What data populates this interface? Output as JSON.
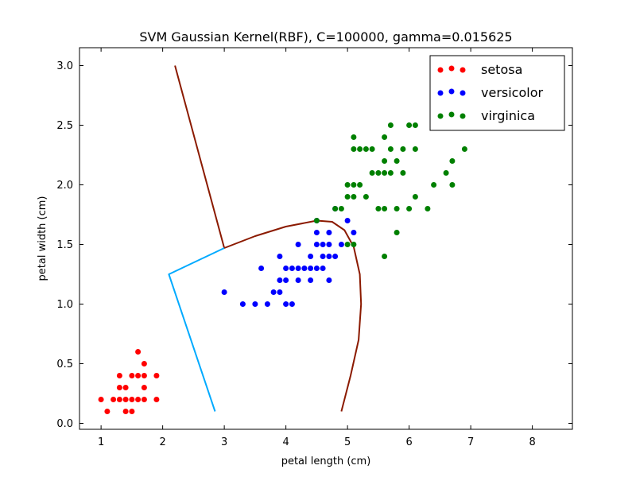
{
  "chart_data": {
    "type": "scatter",
    "title": "SVM Gaussian Kernel(RBF), C=100000, gamma=0.015625",
    "xlabel": "petal length (cm)",
    "ylabel": "petal width (cm)",
    "xlim": [
      0.65,
      8.65
    ],
    "ylim": [
      -0.05,
      3.15
    ],
    "xticks": [
      "1",
      "2",
      "3",
      "4",
      "5",
      "6",
      "7",
      "8"
    ],
    "yticks": [
      "0.0",
      "0.5",
      "1.0",
      "1.5",
      "2.0",
      "2.5",
      "3.0"
    ],
    "grid": false,
    "legend_position": "top-right",
    "series": [
      {
        "name": "setosa",
        "color": "#ff0000",
        "points": [
          [
            1.0,
            0.2
          ],
          [
            1.1,
            0.1
          ],
          [
            1.2,
            0.2
          ],
          [
            1.3,
            0.2
          ],
          [
            1.3,
            0.3
          ],
          [
            1.3,
            0.4
          ],
          [
            1.4,
            0.1
          ],
          [
            1.4,
            0.2
          ],
          [
            1.4,
            0.3
          ],
          [
            1.5,
            0.1
          ],
          [
            1.5,
            0.2
          ],
          [
            1.5,
            0.4
          ],
          [
            1.6,
            0.2
          ],
          [
            1.6,
            0.4
          ],
          [
            1.6,
            0.6
          ],
          [
            1.7,
            0.2
          ],
          [
            1.7,
            0.3
          ],
          [
            1.7,
            0.4
          ],
          [
            1.7,
            0.5
          ],
          [
            1.9,
            0.2
          ],
          [
            1.9,
            0.4
          ]
        ]
      },
      {
        "name": "versicolor",
        "color": "#0000ff",
        "points": [
          [
            3.0,
            1.1
          ],
          [
            3.3,
            1.0
          ],
          [
            3.5,
            1.0
          ],
          [
            3.6,
            1.3
          ],
          [
            3.7,
            1.0
          ],
          [
            3.8,
            1.1
          ],
          [
            3.9,
            1.1
          ],
          [
            3.9,
            1.2
          ],
          [
            3.9,
            1.4
          ],
          [
            4.0,
            1.0
          ],
          [
            4.0,
            1.2
          ],
          [
            4.0,
            1.3
          ],
          [
            4.1,
            1.0
          ],
          [
            4.1,
            1.3
          ],
          [
            4.2,
            1.2
          ],
          [
            4.2,
            1.3
          ],
          [
            4.2,
            1.5
          ],
          [
            4.3,
            1.3
          ],
          [
            4.4,
            1.2
          ],
          [
            4.4,
            1.3
          ],
          [
            4.4,
            1.4
          ],
          [
            4.5,
            1.3
          ],
          [
            4.5,
            1.5
          ],
          [
            4.5,
            1.6
          ],
          [
            4.5,
            1.7
          ],
          [
            4.6,
            1.3
          ],
          [
            4.6,
            1.4
          ],
          [
            4.6,
            1.5
          ],
          [
            4.7,
            1.2
          ],
          [
            4.7,
            1.4
          ],
          [
            4.7,
            1.5
          ],
          [
            4.7,
            1.6
          ],
          [
            4.8,
            1.4
          ],
          [
            4.8,
            1.8
          ],
          [
            4.9,
            1.5
          ],
          [
            5.0,
            1.7
          ],
          [
            5.1,
            1.6
          ]
        ]
      },
      {
        "name": "virginica",
        "color": "#008000",
        "points": [
          [
            4.5,
            1.7
          ],
          [
            4.8,
            1.8
          ],
          [
            4.9,
            1.8
          ],
          [
            5.0,
            1.5
          ],
          [
            5.0,
            1.9
          ],
          [
            5.0,
            2.0
          ],
          [
            5.1,
            1.5
          ],
          [
            5.1,
            1.9
          ],
          [
            5.1,
            2.0
          ],
          [
            5.1,
            2.3
          ],
          [
            5.1,
            2.4
          ],
          [
            5.2,
            2.0
          ],
          [
            5.2,
            2.3
          ],
          [
            5.3,
            1.9
          ],
          [
            5.3,
            2.3
          ],
          [
            5.4,
            2.1
          ],
          [
            5.4,
            2.3
          ],
          [
            5.5,
            1.8
          ],
          [
            5.5,
            2.1
          ],
          [
            5.6,
            1.4
          ],
          [
            5.6,
            1.8
          ],
          [
            5.6,
            2.1
          ],
          [
            5.6,
            2.2
          ],
          [
            5.6,
            2.4
          ],
          [
            5.7,
            2.1
          ],
          [
            5.7,
            2.3
          ],
          [
            5.7,
            2.5
          ],
          [
            5.8,
            1.6
          ],
          [
            5.8,
            1.8
          ],
          [
            5.8,
            2.2
          ],
          [
            5.9,
            2.1
          ],
          [
            5.9,
            2.3
          ],
          [
            6.0,
            1.8
          ],
          [
            6.0,
            2.5
          ],
          [
            6.1,
            1.9
          ],
          [
            6.1,
            2.3
          ],
          [
            6.1,
            2.5
          ],
          [
            6.3,
            1.8
          ],
          [
            6.4,
            2.0
          ],
          [
            6.6,
            2.1
          ],
          [
            6.7,
            2.0
          ],
          [
            6.7,
            2.2
          ],
          [
            6.9,
            2.3
          ]
        ]
      }
    ],
    "decision_boundaries": [
      {
        "color": "#8b1a00",
        "points": [
          [
            2.2,
            3.0
          ],
          [
            3.0,
            1.47
          ],
          [
            3.5,
            1.57
          ],
          [
            4.0,
            1.65
          ],
          [
            4.5,
            1.7
          ],
          [
            4.75,
            1.69
          ],
          [
            4.95,
            1.62
          ],
          [
            5.1,
            1.48
          ],
          [
            5.2,
            1.25
          ],
          [
            5.22,
            1.0
          ],
          [
            5.18,
            0.7
          ],
          [
            5.05,
            0.4
          ],
          [
            4.9,
            0.1
          ]
        ]
      },
      {
        "color": "#00aaff",
        "points": [
          [
            3.0,
            1.47
          ],
          [
            2.1,
            1.25
          ],
          [
            2.85,
            0.1
          ]
        ]
      }
    ]
  }
}
